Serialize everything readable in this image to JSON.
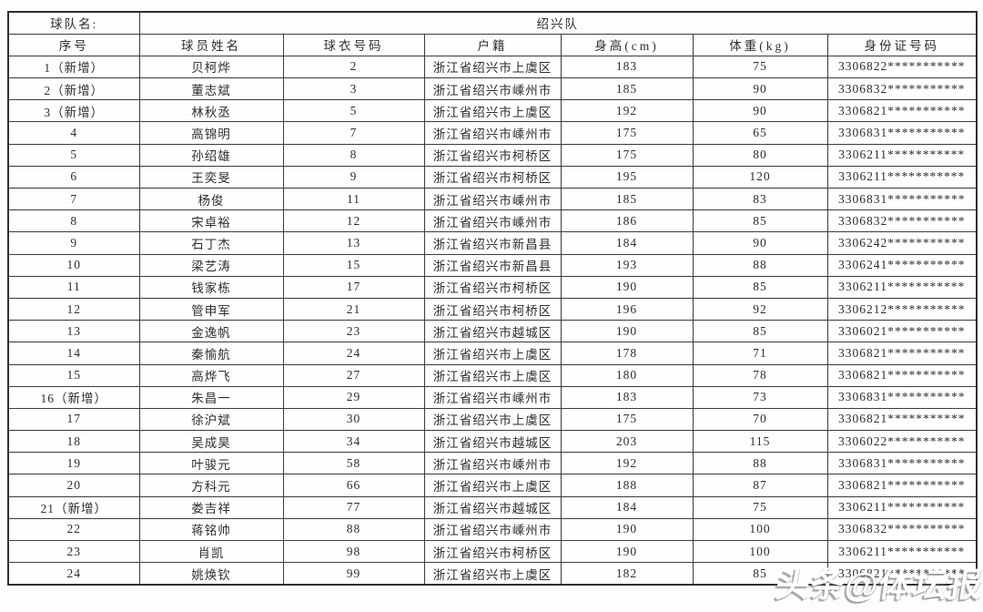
{
  "table": {
    "team_label": "球队名:",
    "team_name": "绍兴队",
    "columns": [
      "序号",
      "球员姓名",
      "球衣号码",
      "户籍",
      "身高(cm)",
      "体重(kg)",
      "身份证号码"
    ],
    "rows": [
      [
        "1（新增）",
        "贝柯烨",
        "2",
        "浙江省绍兴市上虞区",
        "183",
        "75",
        "3306822***********"
      ],
      [
        "2（新增）",
        "董志斌",
        "3",
        "浙江省绍兴市嵊州市",
        "185",
        "90",
        "3306832***********"
      ],
      [
        "3（新增）",
        "林秋丞",
        "5",
        "浙江省绍兴市上虞区",
        "192",
        "90",
        "3306821***********"
      ],
      [
        "4",
        "高锦明",
        "7",
        "浙江省绍兴市嵊州市",
        "175",
        "65",
        "3306831***********"
      ],
      [
        "5",
        "孙绍雄",
        "8",
        "浙江省绍兴市柯桥区",
        "175",
        "80",
        "3306211***********"
      ],
      [
        "6",
        "王奕旻",
        "9",
        "浙江省绍兴市柯桥区",
        "195",
        "120",
        "3306211***********"
      ],
      [
        "7",
        "杨俊",
        "11",
        "浙江省绍兴市嵊州市",
        "185",
        "83",
        "3306831***********"
      ],
      [
        "8",
        "宋卓裕",
        "12",
        "浙江省绍兴市嵊州市",
        "186",
        "85",
        "3306832***********"
      ],
      [
        "9",
        "石丁杰",
        "13",
        "浙江省绍兴市新昌县",
        "184",
        "90",
        "3306242***********"
      ],
      [
        "10",
        "梁艺涛",
        "15",
        "浙江省绍兴市新昌县",
        "193",
        "88",
        "3306241***********"
      ],
      [
        "11",
        "钱家栋",
        "17",
        "浙江省绍兴市柯桥区",
        "190",
        "85",
        "3306211***********"
      ],
      [
        "12",
        "管申军",
        "21",
        "浙江省绍兴市柯桥区",
        "196",
        "92",
        "3306212***********"
      ],
      [
        "13",
        "金逸帆",
        "23",
        "浙江省绍兴市越城区",
        "190",
        "85",
        "3306021***********"
      ],
      [
        "14",
        "秦愉航",
        "24",
        "浙江省绍兴市上虞区",
        "178",
        "71",
        "3306821***********"
      ],
      [
        "15",
        "高烨飞",
        "27",
        "浙江省绍兴市上虞区",
        "180",
        "78",
        "3306821***********"
      ],
      [
        "16（新增）",
        "朱昌一",
        "29",
        "浙江省绍兴市嵊州市",
        "183",
        "73",
        "3306831***********"
      ],
      [
        "17",
        "徐沪斌",
        "30",
        "浙江省绍兴市上虞区",
        "175",
        "70",
        "3306821***********"
      ],
      [
        "18",
        "吴成昊",
        "34",
        "浙江省绍兴市越城区",
        "203",
        "115",
        "3306022***********"
      ],
      [
        "19",
        "叶骏元",
        "58",
        "浙江省绍兴市嵊州市",
        "192",
        "88",
        "3306831***********"
      ],
      [
        "20",
        "方科元",
        "66",
        "浙江省绍兴市上虞区",
        "188",
        "87",
        "3306821***********"
      ],
      [
        "21（新增）",
        "娄吉祥",
        "77",
        "浙江省绍兴市越城区",
        "184",
        "75",
        "3306211***********"
      ],
      [
        "22",
        "蒋铭帅",
        "88",
        "浙江省绍兴市嵊州市",
        "190",
        "100",
        "3306832***********"
      ],
      [
        "23",
        "肖凯",
        "98",
        "浙江省绍兴市柯桥区",
        "190",
        "100",
        "3306211***********"
      ],
      [
        "24",
        "姚焕钦",
        "99",
        "浙江省绍兴市上虞区",
        "182",
        "85",
        "3306821***********"
      ]
    ]
  },
  "colors": {
    "border": "#3b3b3b",
    "text": "#2e2e2e",
    "watermark": "#ffffff"
  },
  "watermark": {
    "text": "头条@体坛报"
  }
}
